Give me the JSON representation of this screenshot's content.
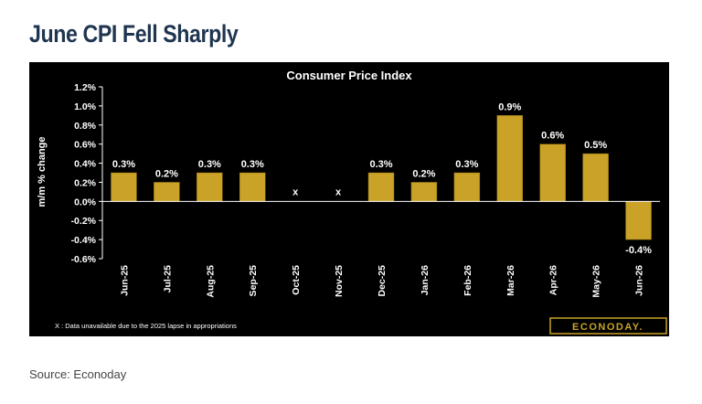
{
  "header": {
    "title": "June CPI Fell Sharply"
  },
  "footer": {
    "source": "Source: Econoday"
  },
  "colors": {
    "bar": "#c9a227",
    "bar_edge": "#8a6d12",
    "panel": "#000000",
    "text": "#ffffff",
    "title": "#1f3550"
  },
  "chart_data": {
    "type": "bar",
    "title": "Consumer Price Index",
    "ylabel": "m/m % change",
    "xlabel": "",
    "categories": [
      "Jun-25",
      "Jul-25",
      "Aug-25",
      "Sep-25",
      "Oct-25",
      "Nov-25",
      "Dec-25",
      "Jan-26",
      "Feb-26",
      "Mar-26",
      "Apr-26",
      "May-26",
      "Jun-26"
    ],
    "values": [
      0.3,
      0.2,
      0.3,
      0.3,
      null,
      null,
      0.3,
      0.2,
      0.3,
      0.9,
      0.6,
      0.5,
      -0.4
    ],
    "data_labels": [
      "0.3%",
      "0.2%",
      "0.3%",
      "0.3%",
      "x",
      "x",
      "0.3%",
      "0.2%",
      "0.3%",
      "0.9%",
      "0.6%",
      "0.5%",
      "-0.4%"
    ],
    "yticks": [
      1.2,
      1.0,
      0.8,
      0.6,
      0.4,
      0.2,
      0.0,
      -0.2,
      -0.4,
      -0.6
    ],
    "ytick_labels": [
      "1.2%",
      "1.0%",
      "0.8%",
      "0.6%",
      "0.4%",
      "0.2%",
      "0.0%",
      "-0.2%",
      "-0.4%",
      "-0.6%"
    ],
    "ylim": [
      -0.6,
      1.2
    ],
    "grid": false,
    "footnote": "X : Data unavailable due to the 2025 lapse in appropriations",
    "watermark": "ECONODAY."
  }
}
